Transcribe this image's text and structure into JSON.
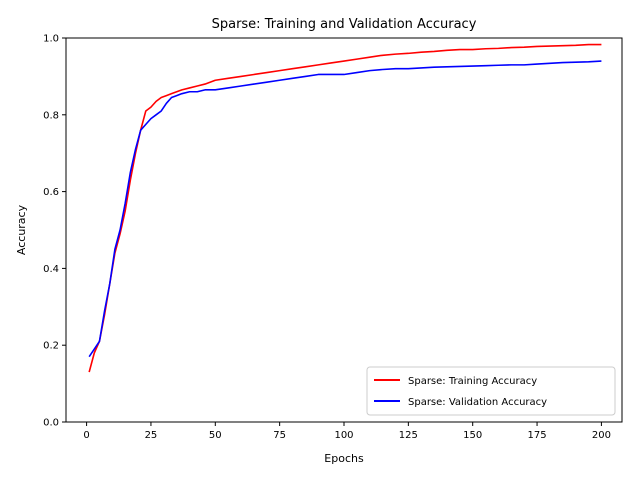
{
  "chart_data": {
    "type": "line",
    "title": "Sparse: Training and Validation Accuracy",
    "xlabel": "Epochs",
    "ylabel": "Accuracy",
    "xlim": [
      -8,
      208
    ],
    "ylim": [
      0.0,
      1.0
    ],
    "x_ticks": [
      0,
      25,
      50,
      75,
      100,
      125,
      150,
      175,
      200
    ],
    "y_ticks": [
      0.0,
      0.2,
      0.4,
      0.6,
      0.8,
      1.0
    ],
    "x_tick_labels": [
      "0",
      "25",
      "50",
      "75",
      "100",
      "125",
      "150",
      "175",
      "200"
    ],
    "y_tick_labels": [
      "0.0",
      "0.2",
      "0.4",
      "0.6",
      "0.8",
      "1.0"
    ],
    "grid": false,
    "legend_position": "lower-right",
    "series": [
      {
        "name": "Sparse: Training Accuracy",
        "color": "#ff0000",
        "x": [
          1,
          3,
          5,
          7,
          9,
          11,
          13,
          15,
          17,
          19,
          21,
          23,
          25,
          27,
          29,
          31,
          33,
          35,
          37,
          40,
          43,
          46,
          50,
          55,
          60,
          65,
          70,
          75,
          80,
          85,
          90,
          95,
          100,
          105,
          110,
          115,
          120,
          125,
          130,
          135,
          140,
          145,
          150,
          155,
          160,
          165,
          170,
          175,
          180,
          185,
          190,
          195,
          200
        ],
        "y": [
          0.13,
          0.18,
          0.21,
          0.28,
          0.36,
          0.44,
          0.49,
          0.55,
          0.63,
          0.7,
          0.76,
          0.81,
          0.82,
          0.835,
          0.845,
          0.85,
          0.855,
          0.86,
          0.865,
          0.87,
          0.875,
          0.88,
          0.89,
          0.895,
          0.9,
          0.905,
          0.91,
          0.915,
          0.92,
          0.925,
          0.93,
          0.935,
          0.94,
          0.945,
          0.95,
          0.955,
          0.958,
          0.96,
          0.963,
          0.965,
          0.968,
          0.97,
          0.97,
          0.972,
          0.973,
          0.975,
          0.976,
          0.978,
          0.979,
          0.98,
          0.981,
          0.983,
          0.983
        ]
      },
      {
        "name": "Sparse: Validation Accuracy",
        "color": "#0000ff",
        "x": [
          1,
          3,
          5,
          7,
          9,
          11,
          13,
          15,
          17,
          19,
          21,
          23,
          25,
          27,
          29,
          31,
          33,
          35,
          37,
          40,
          43,
          46,
          50,
          55,
          60,
          65,
          70,
          75,
          80,
          85,
          90,
          95,
          100,
          105,
          110,
          115,
          120,
          125,
          130,
          135,
          140,
          145,
          150,
          155,
          160,
          165,
          170,
          175,
          180,
          185,
          190,
          195,
          200
        ],
        "y": [
          0.17,
          0.19,
          0.21,
          0.29,
          0.36,
          0.45,
          0.5,
          0.57,
          0.65,
          0.71,
          0.76,
          0.775,
          0.79,
          0.8,
          0.81,
          0.83,
          0.845,
          0.85,
          0.855,
          0.86,
          0.86,
          0.865,
          0.865,
          0.87,
          0.875,
          0.88,
          0.885,
          0.89,
          0.895,
          0.9,
          0.905,
          0.905,
          0.905,
          0.91,
          0.915,
          0.918,
          0.92,
          0.92,
          0.922,
          0.924,
          0.925,
          0.926,
          0.927,
          0.928,
          0.929,
          0.93,
          0.93,
          0.932,
          0.934,
          0.936,
          0.937,
          0.938,
          0.94
        ]
      }
    ]
  }
}
